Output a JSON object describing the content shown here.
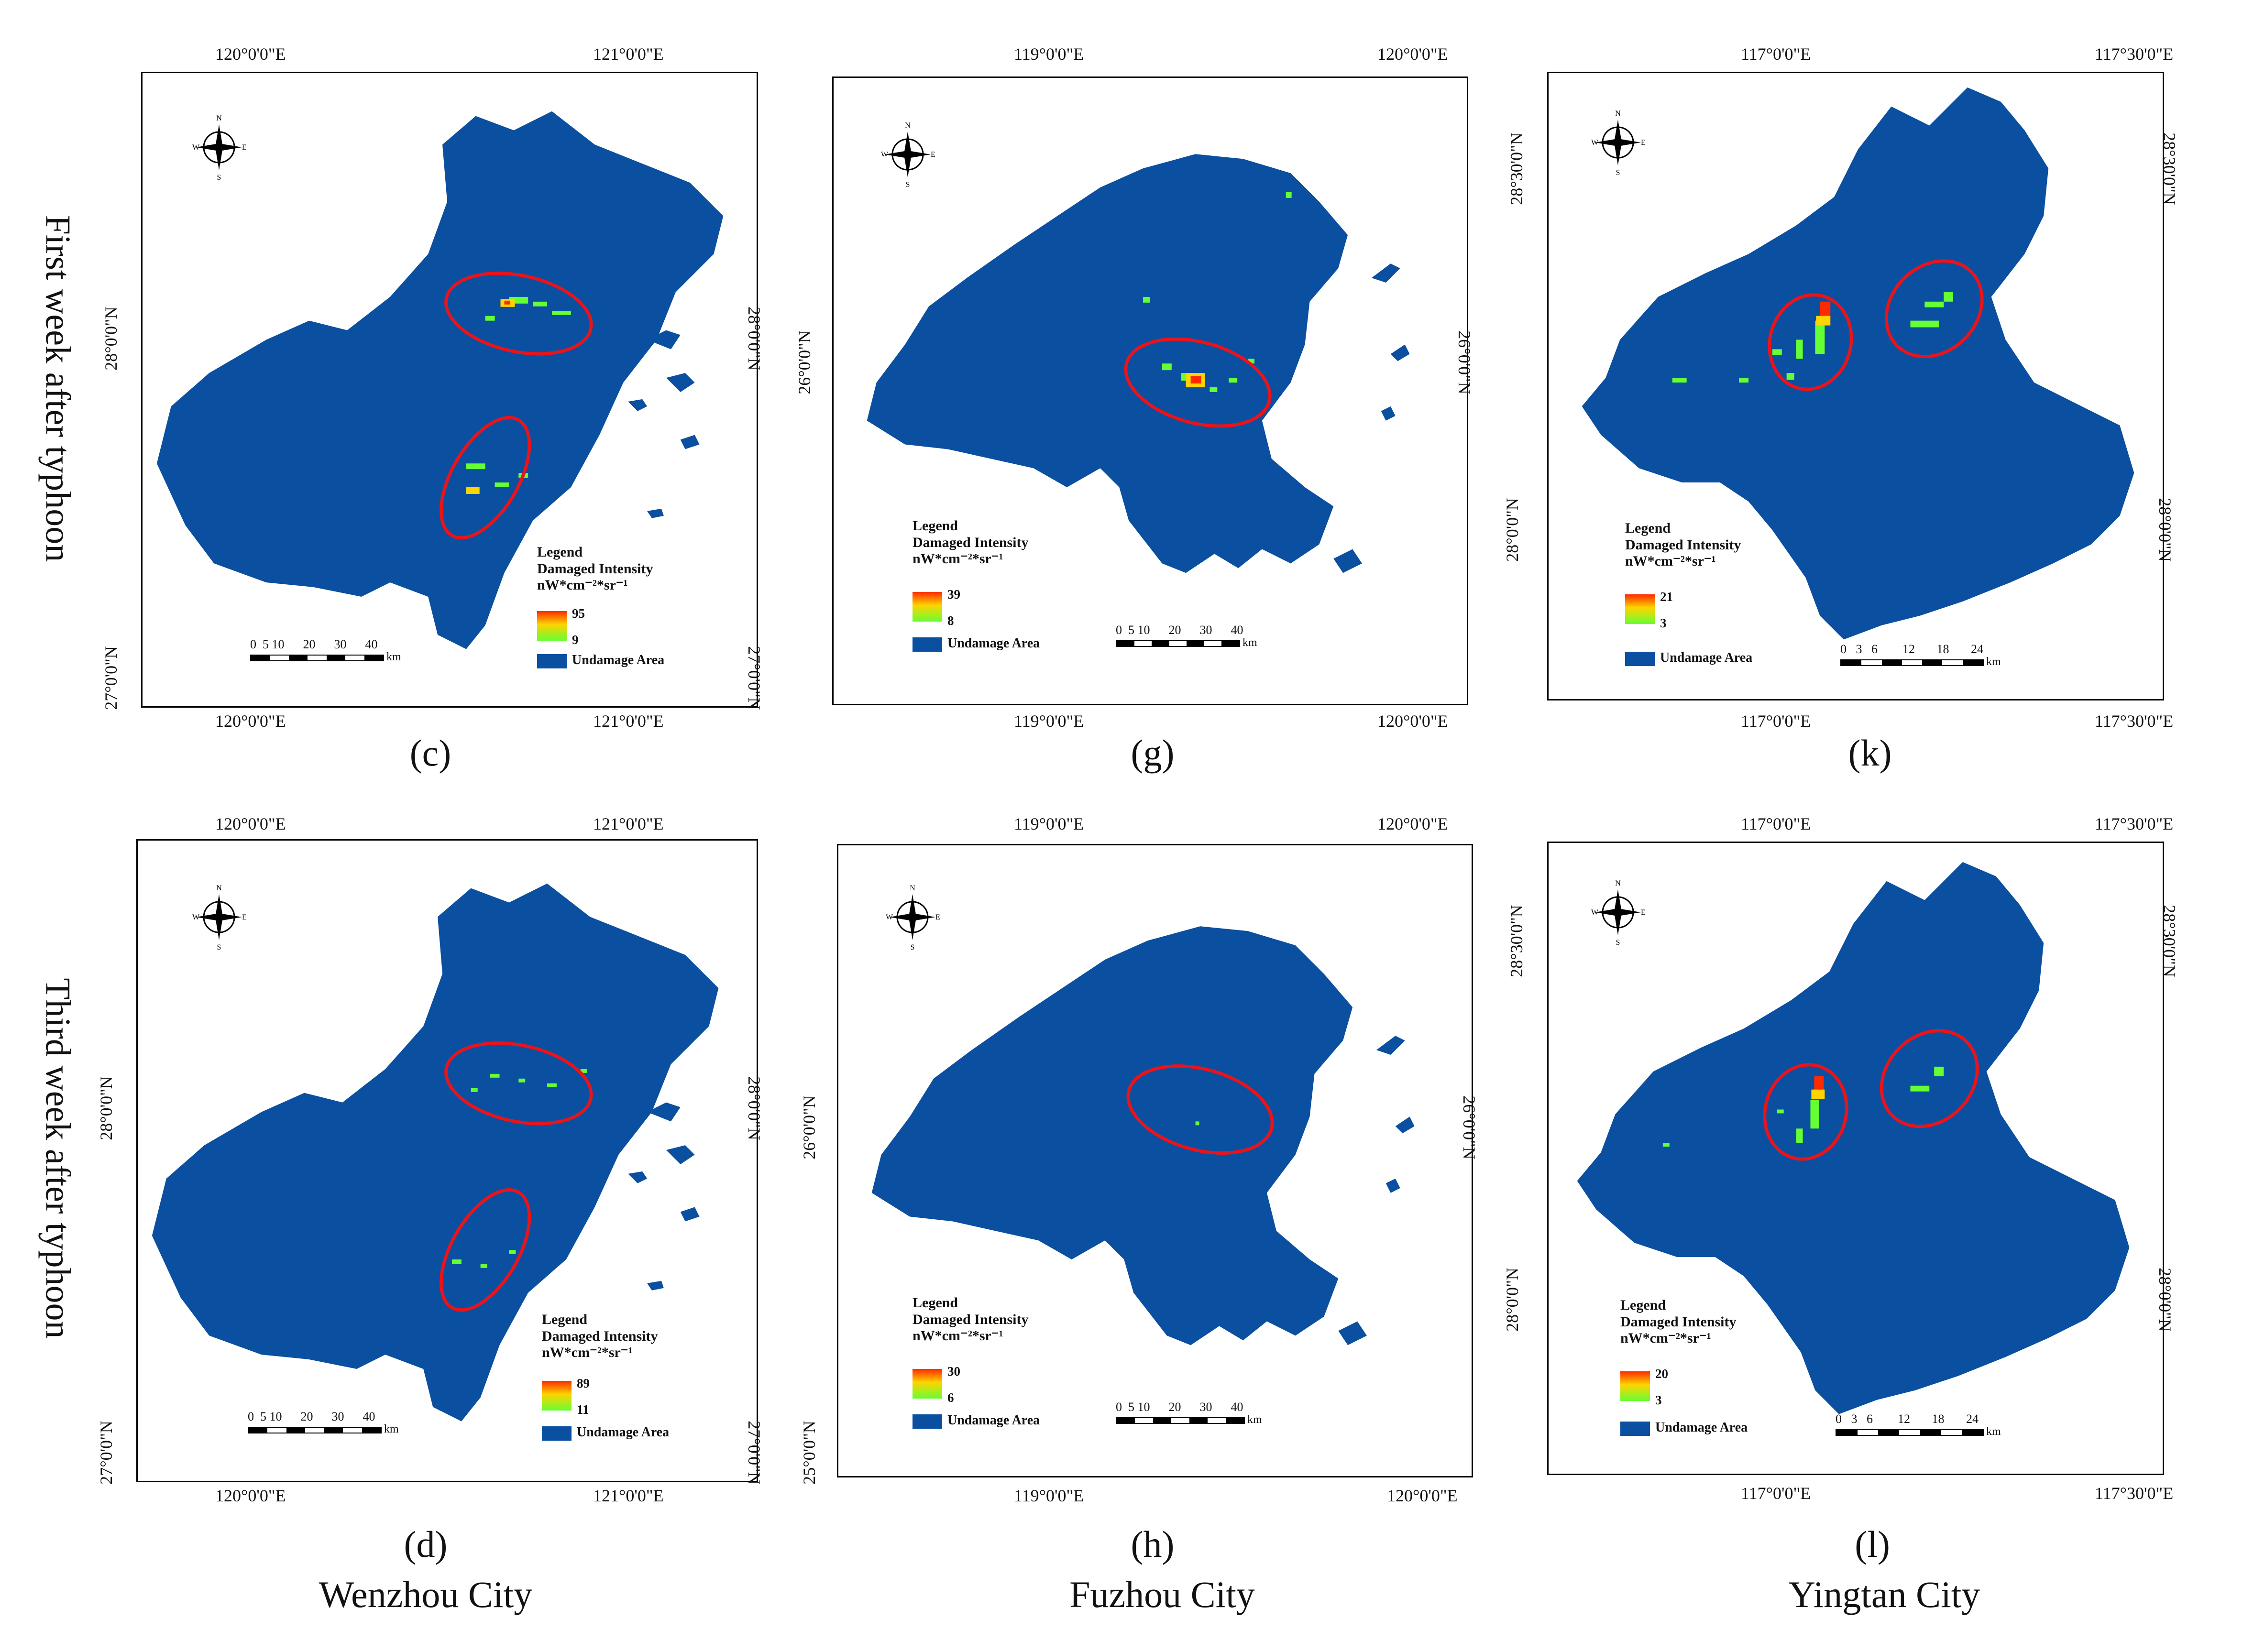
{
  "row_labels": [
    "First week after typhoon",
    "Third week after typhoon"
  ],
  "cities": [
    "Wenzhou City",
    "Fuzhou City",
    "Yingtan City"
  ],
  "legend_common": {
    "title": "Legend",
    "subtitle": "Damaged Intensity",
    "unit": "nW*cm⁻²*sr⁻¹",
    "undamaged": "Undamage Area",
    "km": "km"
  },
  "compass": {
    "n": "N",
    "s": "S",
    "e": "E",
    "w": "W"
  },
  "colors": {
    "undamaged": "#0a4fa0",
    "high": "#ff2a00",
    "mid": "#ffd400",
    "low": "#66ff33",
    "circle": "#e8141c"
  },
  "panels": [
    {
      "id": "c",
      "label": "(c)",
      "top_ticks": [
        "120°0'0\"E",
        "121°0'0\"E"
      ],
      "bottom_ticks": [
        "120°0'0\"E",
        "121°0'0\"E"
      ],
      "left_ticks": [
        "28°0'0\"N",
        "27°0'0\"N"
      ],
      "right_ticks": [
        "28°0'0\"N",
        "27°0'0\"N"
      ],
      "legend_max": "95",
      "legend_min": "9",
      "scale": "0  5 10      20      30      40"
    },
    {
      "id": "g",
      "label": "(g)",
      "top_ticks": [
        "119°0'0\"E",
        "120°0'0\"E"
      ],
      "bottom_ticks": [
        "119°0'0\"E",
        "120°0'0\"E"
      ],
      "left_ticks": [
        "26°0'0\"N"
      ],
      "right_ticks": [
        "26°0'0\"N"
      ],
      "legend_max": "39",
      "legend_min": "8",
      "scale": "0  5 10      20      30      40"
    },
    {
      "id": "k",
      "label": "(k)",
      "top_ticks": [
        "117°0'0\"E",
        "117°30'0\"E"
      ],
      "bottom_ticks": [
        "117°0'0\"E",
        "117°30'0\"E"
      ],
      "left_ticks": [
        "28°30'0\"N",
        "28°0'0\"N"
      ],
      "right_ticks": [
        "28°30'0\"N",
        "28°0'0\"N"
      ],
      "legend_max": "21",
      "legend_min": "3",
      "scale": "0   3   6        12       18       24"
    },
    {
      "id": "d",
      "label": "(d)",
      "top_ticks": [
        "120°0'0\"E",
        "121°0'0\"E"
      ],
      "bottom_ticks": [
        "120°0'0\"E",
        "121°0'0\"E"
      ],
      "left_ticks": [
        "28°0'0\"N",
        "27°0'0\"N"
      ],
      "right_ticks": [
        "28°0'0\"N",
        "27°0'0\"N"
      ],
      "legend_max": "89",
      "legend_min": "11",
      "scale": "0  5 10      20      30      40"
    },
    {
      "id": "h",
      "label": "(h)",
      "top_ticks": [
        "119°0'0\"E",
        "120°0'0\"E"
      ],
      "bottom_ticks": [
        "119°0'0\"E",
        "120°0'0\"E"
      ],
      "left_ticks": [
        "26°0'0\"N",
        "25°0'0\"N"
      ],
      "right_ticks": [
        "26°0'0\"N"
      ],
      "legend_max": "30",
      "legend_min": "6",
      "scale": "0  5 10      20      30      40"
    },
    {
      "id": "l",
      "label": "(l)",
      "top_ticks": [
        "117°0'0\"E",
        "117°30'0\"E"
      ],
      "bottom_ticks": [
        "117°0'0\"E",
        "117°30'0\"E"
      ],
      "left_ticks": [
        "28°30'0\"N",
        "28°0'0\"N"
      ],
      "right_ticks": [
        "28°30'0\"N",
        "28°0'0\"N"
      ],
      "legend_max": "20",
      "legend_min": "3",
      "scale": "0   3   6        12       18       24"
    }
  ]
}
